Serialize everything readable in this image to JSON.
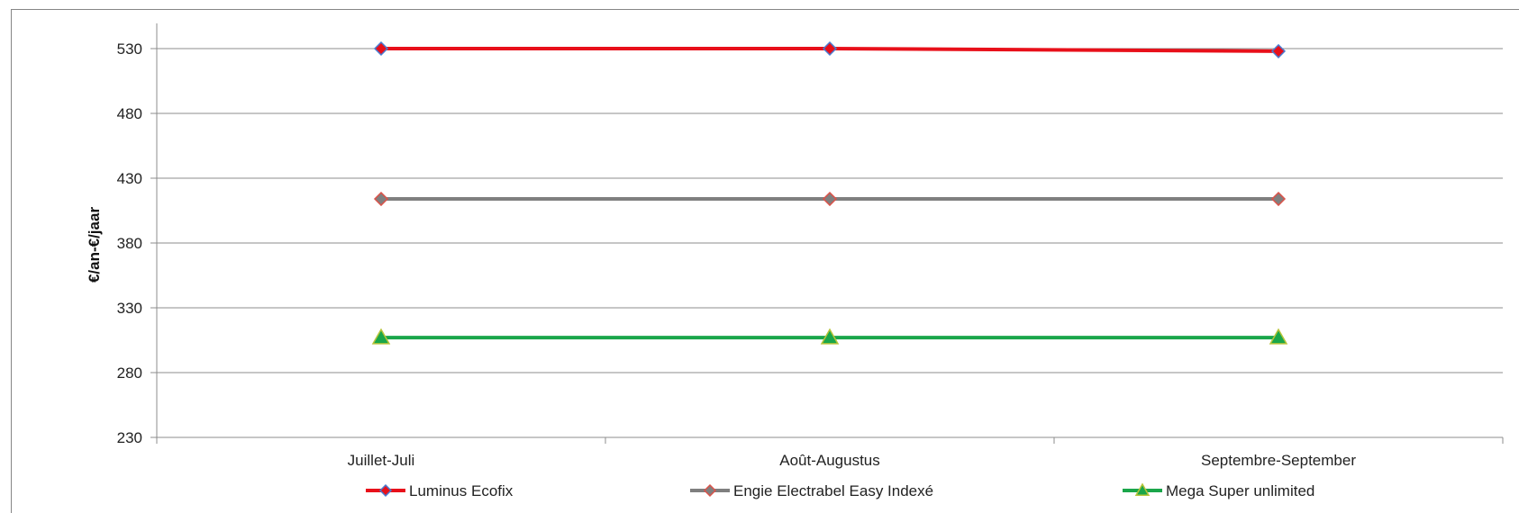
{
  "chart_data": {
    "type": "line",
    "title": "",
    "xlabel": "",
    "ylabel": "€/an-€/jaar",
    "categories": [
      "Juillet-Juli",
      "Août-Augustus",
      "Septembre-September"
    ],
    "ylim": [
      230,
      530
    ],
    "yticks": [
      230,
      280,
      330,
      380,
      430,
      480,
      530
    ],
    "grid": true,
    "legend_position": "bottom",
    "series": [
      {
        "name": "Luminus Ecofix",
        "values": [
          530,
          530,
          528
        ],
        "color": "#e8101a",
        "marker": "diamond",
        "marker_fill": "#e8101a",
        "marker_stroke": "#4a7bd0"
      },
      {
        "name": "Engie Electrabel Easy Indexé",
        "values": [
          414,
          414,
          414
        ],
        "color": "#7f7f7f",
        "marker": "diamond",
        "marker_fill": "#7f7f7f",
        "marker_stroke": "#d9534a"
      },
      {
        "name": "Mega Super unlimited",
        "values": [
          307,
          307,
          307
        ],
        "color": "#1aa64a",
        "marker": "triangle",
        "marker_fill": "#1aa64a",
        "marker_stroke": "#b7c43a"
      }
    ]
  }
}
